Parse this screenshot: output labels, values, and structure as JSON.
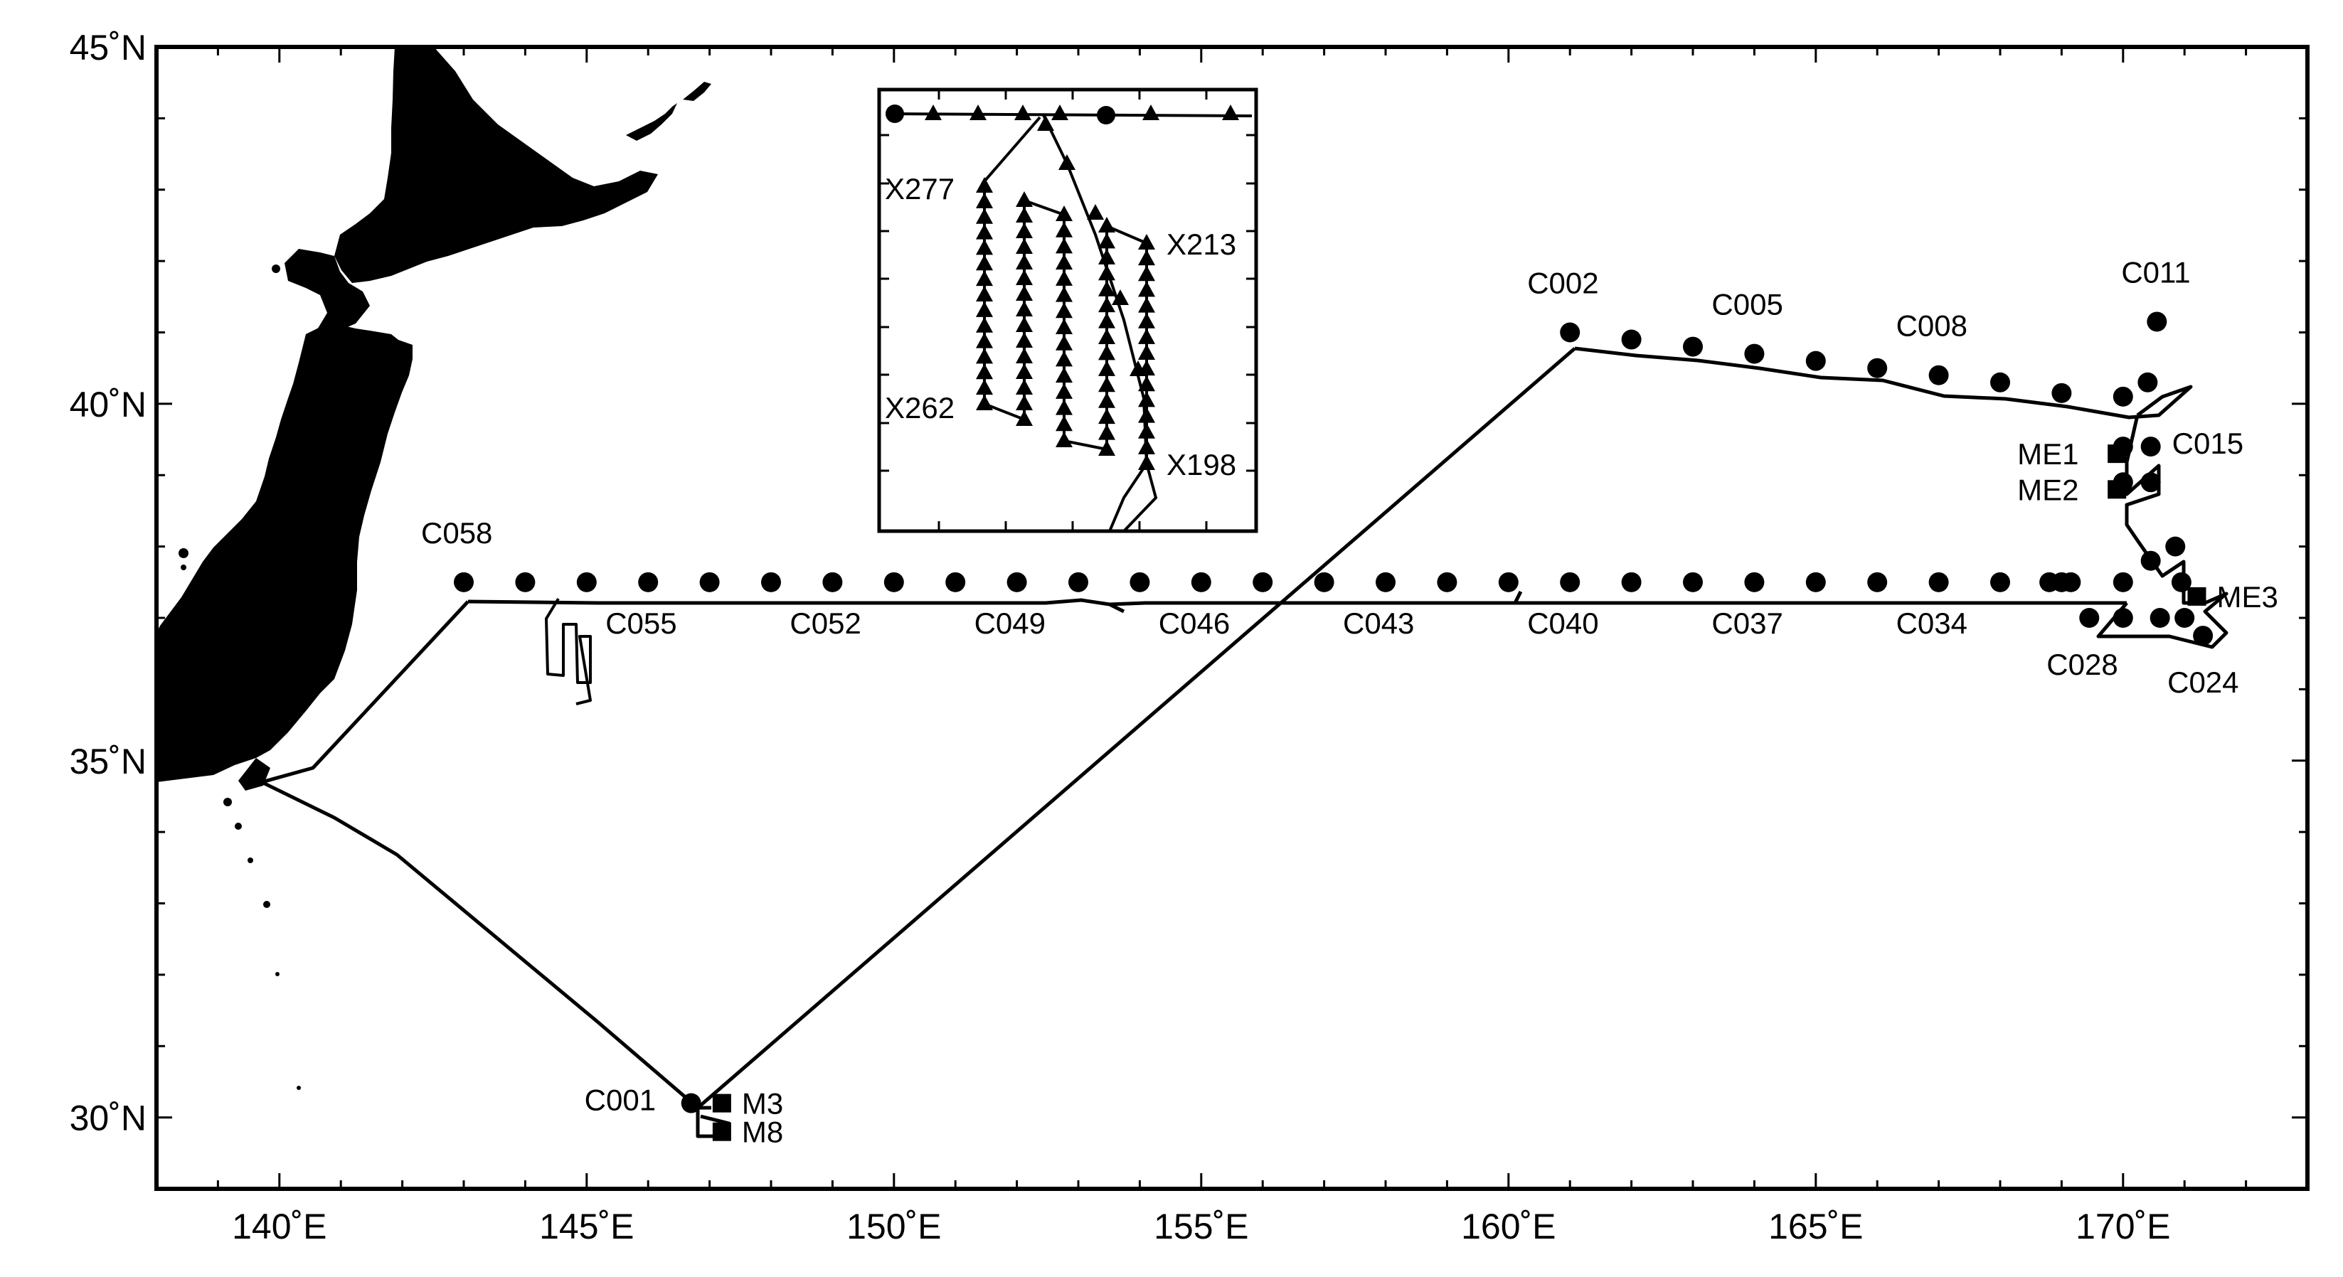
{
  "map": {
    "lon_range": [
      138,
      173
    ],
    "lat_range": [
      29,
      45
    ],
    "x_ticks": [
      {
        "lon": 140,
        "label": "140˚E"
      },
      {
        "lon": 145,
        "label": "145˚E"
      },
      {
        "lon": 150,
        "label": "150˚E"
      },
      {
        "lon": 155,
        "label": "155˚E"
      },
      {
        "lon": 160,
        "label": "160˚E"
      },
      {
        "lon": 165,
        "label": "165˚E"
      },
      {
        "lon": 170,
        "label": "170˚E"
      }
    ],
    "y_ticks": [
      {
        "lat": 30,
        "label": "30˚N"
      },
      {
        "lat": 35,
        "label": "35˚N"
      },
      {
        "lat": 40,
        "label": "40˚N"
      },
      {
        "lat": 45,
        "label": "45˚N"
      }
    ],
    "colors": {
      "land": "#000000",
      "track": "#000000",
      "background": "#ffffff"
    },
    "land_regions": [
      "Honshu",
      "Hokkaido",
      "Kuril Islands",
      "Izu Islands"
    ]
  },
  "stations": {
    "labeled": [
      {
        "label": "C001",
        "lon": 146.7,
        "lat": 30.2
      },
      {
        "label": "C002",
        "lon": 161.0,
        "lat": 41.0
      },
      {
        "label": "C005",
        "lon": 164.0,
        "lat": 40.7
      },
      {
        "label": "C008",
        "lon": 167.0,
        "lat": 40.4
      },
      {
        "label": "C011",
        "lon": 170.55,
        "lat": 41.15
      },
      {
        "label": "C015",
        "lon": 170.45,
        "lat": 39.4
      },
      {
        "label": "C024",
        "lon": 171.3,
        "lat": 36.75
      },
      {
        "label": "C028",
        "lon": 169.45,
        "lat": 37.0
      },
      {
        "label": "C034",
        "lon": 167.0,
        "lat": 37.5
      },
      {
        "label": "C037",
        "lon": 164.0,
        "lat": 37.5
      },
      {
        "label": "C040",
        "lon": 161.0,
        "lat": 37.5
      },
      {
        "label": "C043",
        "lon": 158.0,
        "lat": 37.5
      },
      {
        "label": "C046",
        "lon": 155.0,
        "lat": 37.5
      },
      {
        "label": "C049",
        "lon": 152.0,
        "lat": 37.5
      },
      {
        "label": "C052",
        "lon": 149.0,
        "lat": 37.5
      },
      {
        "label": "C055",
        "lon": 146.0,
        "lat": 37.5
      },
      {
        "label": "C058",
        "lon": 143.0,
        "lat": 37.5
      }
    ],
    "moorings": [
      {
        "label": "M3",
        "lon": 147.2,
        "lat": 30.2
      },
      {
        "label": "M8",
        "lon": 147.2,
        "lat": 29.8
      },
      {
        "label": "ME1",
        "lon": 169.9,
        "lat": 39.3
      },
      {
        "label": "ME2",
        "lon": 169.9,
        "lat": 38.8
      },
      {
        "label": "ME3",
        "lon": 171.2,
        "lat": 37.3
      }
    ]
  },
  "inset": {
    "labels": [
      "X277",
      "X213",
      "X262",
      "X198"
    ]
  }
}
